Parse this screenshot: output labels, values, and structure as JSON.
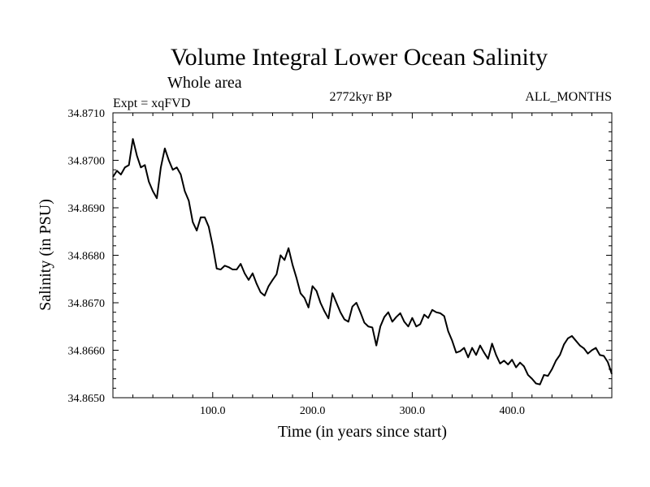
{
  "chart_data": {
    "type": "line",
    "title": "Volume Integral Lower Ocean Salinity",
    "subtitle": "Whole area",
    "annotations": {
      "experiment": "Expt = xqFVD",
      "period": "2772kyr BP",
      "months": "ALL_MONTHS"
    },
    "xlabel": "Time (in years since start)",
    "ylabel": "Salinity (in PSU)",
    "xlim": [
      0,
      500
    ],
    "ylim": [
      34.865,
      34.871
    ],
    "x_ticks": [
      100,
      200,
      300,
      400
    ],
    "x_tick_labels": [
      "100.0",
      "200.0",
      "300.0",
      "400.0"
    ],
    "y_ticks": [
      34.865,
      34.866,
      34.867,
      34.868,
      34.869,
      34.87,
      34.871
    ],
    "y_tick_labels": [
      "34.8650",
      "34.8660",
      "34.8670",
      "34.8680",
      "34.8690",
      "34.8700",
      "34.8710"
    ],
    "grid": false,
    "series": [
      {
        "name": "salinity",
        "x": [
          0,
          4,
          8,
          12,
          16,
          20,
          24,
          28,
          32,
          36,
          40,
          44,
          48,
          52,
          56,
          60,
          64,
          68,
          72,
          76,
          80,
          84,
          88,
          92,
          96,
          100,
          104,
          108,
          112,
          116,
          120,
          124,
          128,
          132,
          136,
          140,
          144,
          148,
          152,
          156,
          160,
          164,
          168,
          172,
          176,
          180,
          184,
          188,
          192,
          196,
          200,
          204,
          208,
          212,
          216,
          220,
          224,
          228,
          232,
          236,
          240,
          244,
          248,
          252,
          256,
          260,
          264,
          268,
          272,
          276,
          280,
          284,
          288,
          292,
          296,
          300,
          304,
          308,
          312,
          316,
          320,
          324,
          328,
          332,
          336,
          340,
          344,
          348,
          352,
          356,
          360,
          364,
          368,
          372,
          376,
          380,
          384,
          388,
          392,
          396,
          400,
          404,
          408,
          412,
          416,
          420,
          424,
          428,
          432,
          436,
          440,
          444,
          448,
          452,
          456,
          460,
          464,
          468,
          472,
          476,
          480,
          484,
          488,
          492,
          496,
          500
        ],
        "values": [
          34.86965,
          34.86978,
          34.8697,
          34.86985,
          34.8699,
          34.87045,
          34.8701,
          34.86985,
          34.8699,
          34.86955,
          34.86935,
          34.8692,
          34.86985,
          34.87025,
          34.87,
          34.8698,
          34.86985,
          34.8697,
          34.86935,
          34.86915,
          34.8687,
          34.86852,
          34.8688,
          34.8688,
          34.8686,
          34.8682,
          34.86772,
          34.8677,
          34.86778,
          34.86775,
          34.8677,
          34.8677,
          34.86782,
          34.86762,
          34.86748,
          34.86762,
          34.8674,
          34.86722,
          34.86715,
          34.86735,
          34.86748,
          34.8676,
          34.868,
          34.8679,
          34.86815,
          34.8678,
          34.86752,
          34.8672,
          34.8671,
          34.8669,
          34.86735,
          34.86725,
          34.867,
          34.86682,
          34.86667,
          34.8672,
          34.867,
          34.8668,
          34.86665,
          34.8666,
          34.86692,
          34.867,
          34.8668,
          34.86658,
          34.8665,
          34.86648,
          34.8661,
          34.8665,
          34.8667,
          34.8668,
          34.8666,
          34.8667,
          34.86678,
          34.8666,
          34.8665,
          34.86668,
          34.8665,
          34.86655,
          34.86675,
          34.86668,
          34.86685,
          34.8668,
          34.86678,
          34.86672,
          34.8664,
          34.8662,
          34.86595,
          34.86598,
          34.86605,
          34.86585,
          34.86605,
          34.8659,
          34.8661,
          34.86595,
          34.86582,
          34.86614,
          34.8659,
          34.86572,
          34.86578,
          34.8657,
          34.8658,
          34.86564,
          34.86574,
          34.86566,
          34.86548,
          34.8654,
          34.8653,
          34.86528,
          34.86548,
          34.86546,
          34.8656,
          34.86578,
          34.8659,
          34.86612,
          34.86625,
          34.8663,
          34.8662,
          34.8661,
          34.86604,
          34.86593,
          34.866,
          34.86605,
          34.8659,
          34.86588,
          34.86575,
          34.8655
        ]
      }
    ]
  }
}
